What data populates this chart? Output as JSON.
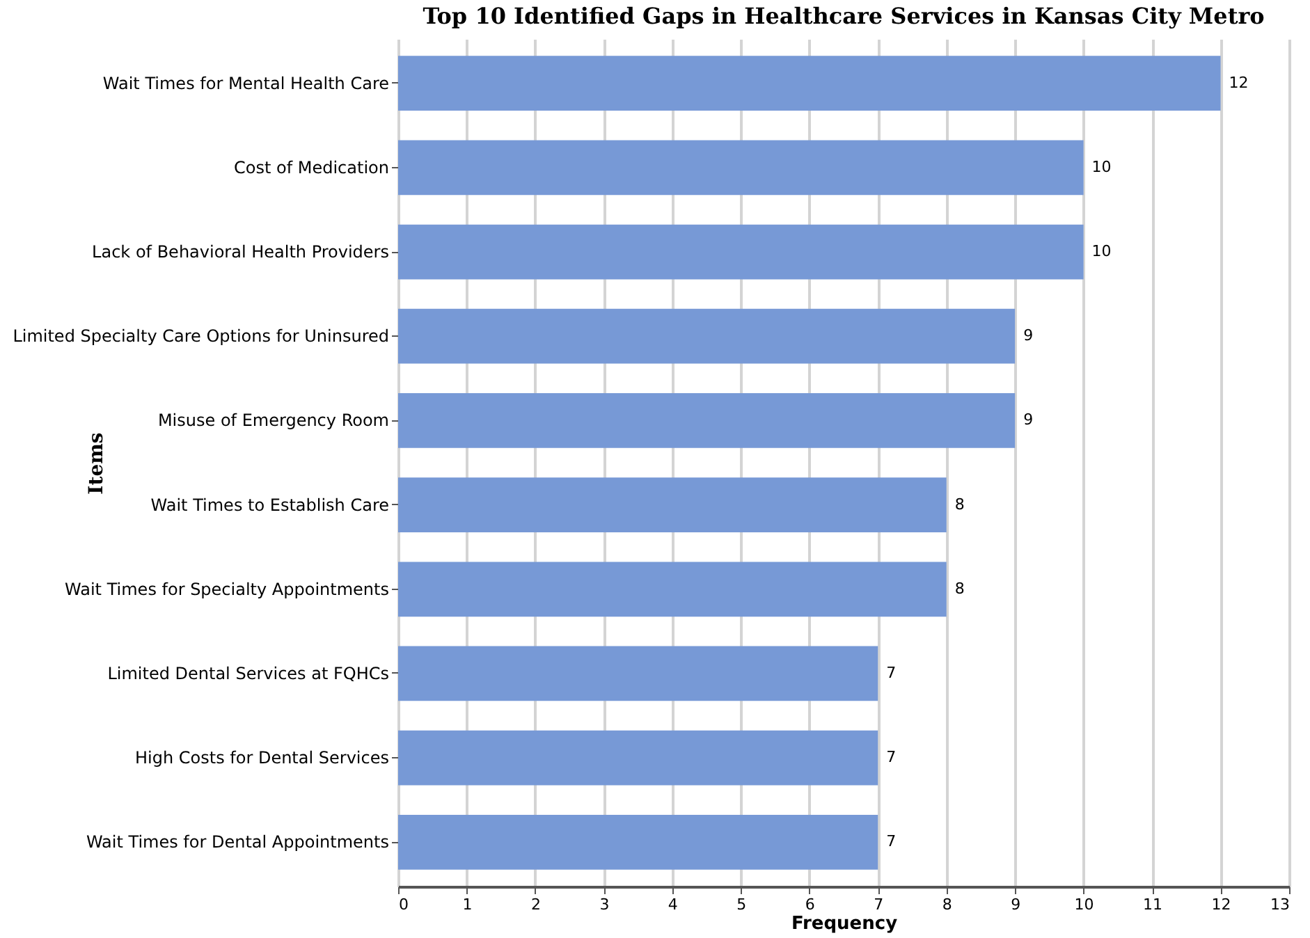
{
  "chart_data": {
    "type": "bar",
    "orientation": "horizontal",
    "title": "Top 10 Identified Gaps in Healthcare Services in Kansas City Metro",
    "xlabel": "Frequency",
    "ylabel": "Items",
    "categories": [
      "Wait Times for Mental Health Care",
      "Cost of Medication",
      "Lack of Behavioral Health Providers",
      "Limited Specialty Care Options for Uninsured",
      "Misuse of Emergency Room",
      "Wait Times to Establish Care",
      "Wait Times for Specialty Appointments",
      "Limited Dental Services at FQHCs",
      "High Costs for Dental Services",
      "Wait Times for Dental Appointments"
    ],
    "values": [
      12,
      10,
      10,
      9,
      9,
      8,
      8,
      7,
      7,
      7
    ],
    "color": "#7799d6",
    "xlim": [
      0,
      13
    ],
    "xticks": [
      0,
      1,
      2,
      3,
      4,
      5,
      6,
      7,
      8,
      9,
      10,
      11,
      12,
      13
    ],
    "grid": "x",
    "data_labels": true
  }
}
